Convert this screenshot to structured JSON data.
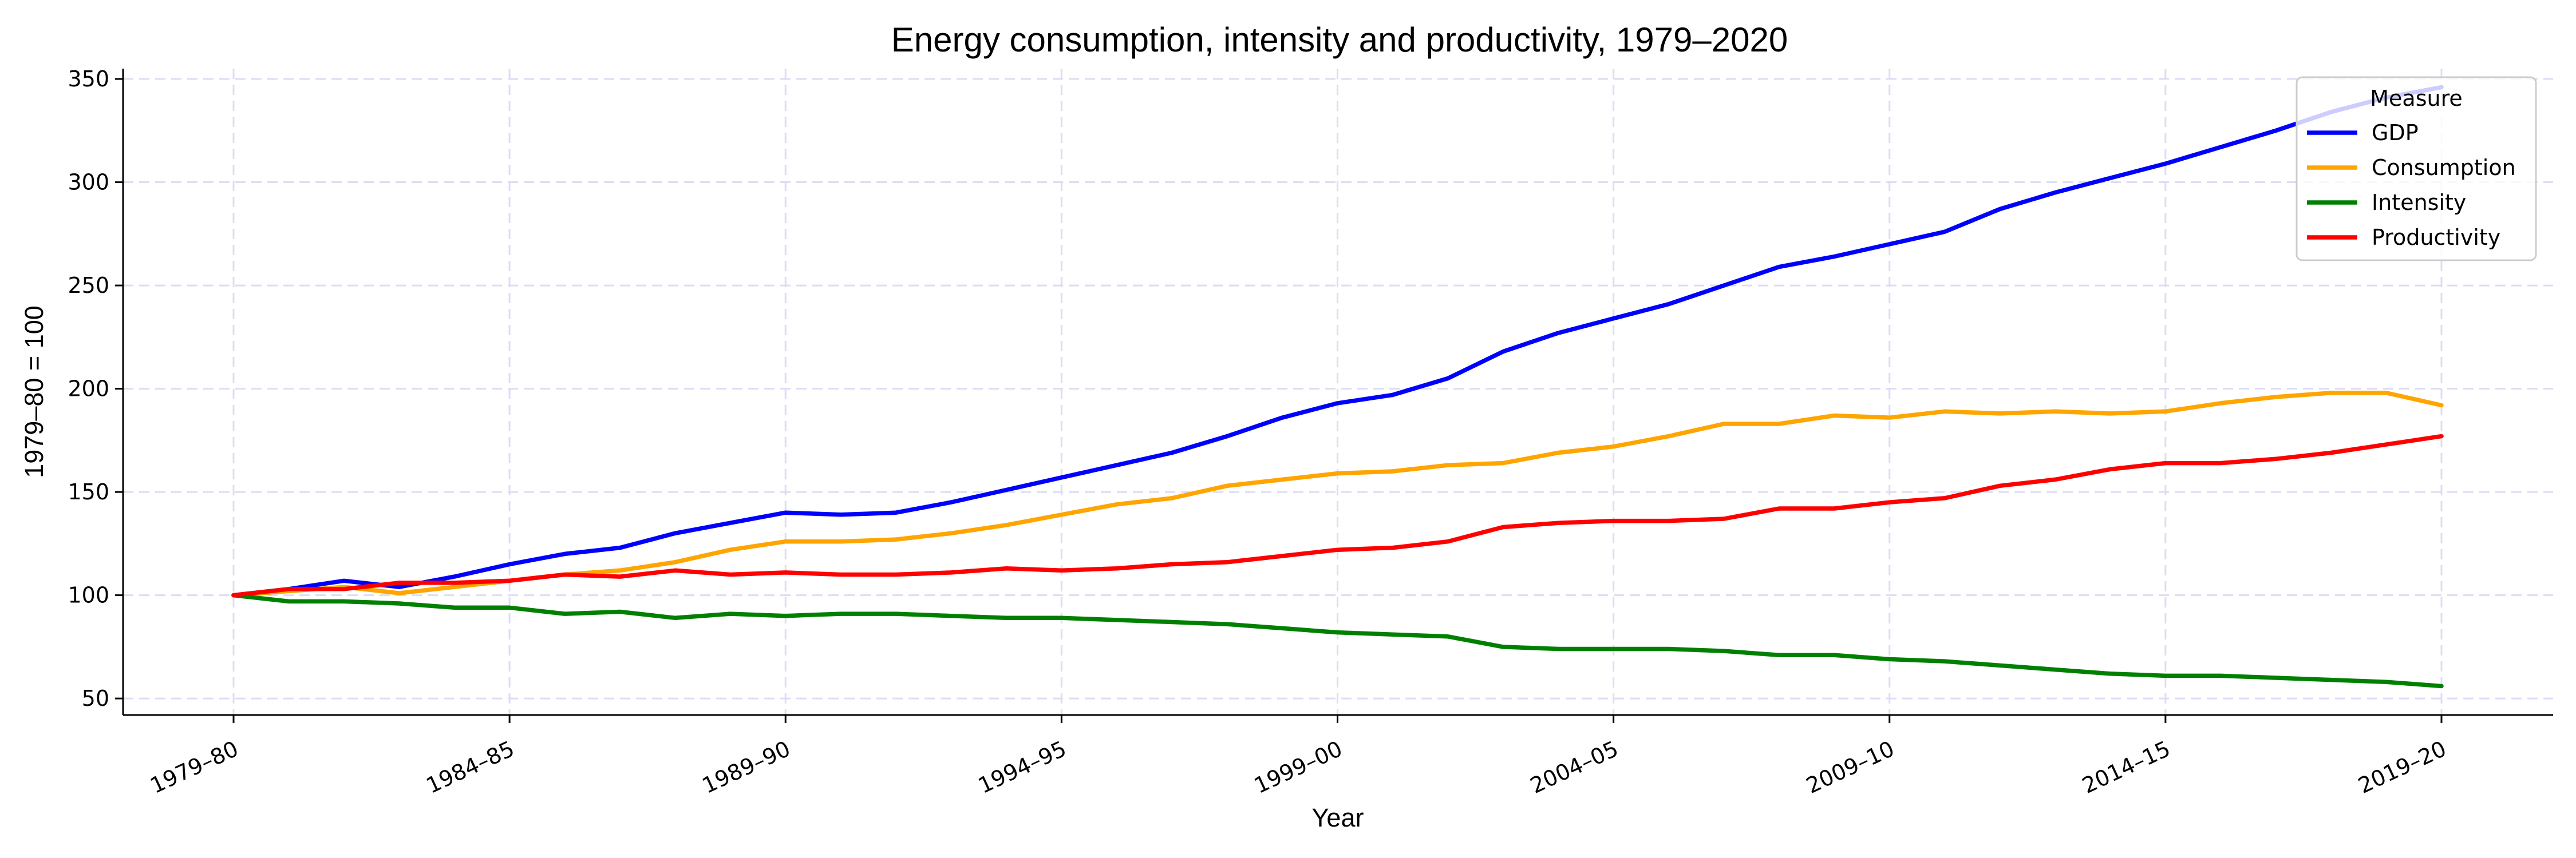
{
  "chart_data": {
    "type": "line",
    "title": "Energy consumption, intensity and productivity, 1979–2020",
    "xlabel": "Year",
    "ylabel": "1979–80 = 100",
    "ylim": [
      42,
      355
    ],
    "yticks": [
      50,
      100,
      150,
      200,
      250,
      300,
      350
    ],
    "x_tick_labels": [
      "1979–80",
      "1984–85",
      "1989–90",
      "1994–95",
      "1999–00",
      "2004–05",
      "2009–10",
      "2014–15",
      "2019–20"
    ],
    "x": [
      "1979–80",
      "1980–81",
      "1981–82",
      "1982–83",
      "1983–84",
      "1984–85",
      "1985–86",
      "1986–87",
      "1987–88",
      "1988–89",
      "1989–90",
      "1990–91",
      "1991–92",
      "1992–93",
      "1993–94",
      "1994–95",
      "1995–96",
      "1996–97",
      "1997–98",
      "1998–99",
      "1999–00",
      "2000–01",
      "2001–02",
      "2002–03",
      "2003–04",
      "2004–05",
      "2005–06",
      "2006–07",
      "2007–08",
      "2008–09",
      "2009–10",
      "2010–11",
      "2011–12",
      "2012–13",
      "2013–14",
      "2014–15",
      "2015–16",
      "2016–17",
      "2017–18",
      "2018–19",
      "2019–20"
    ],
    "grid": true,
    "legend": {
      "title": "Measure",
      "placement": "top-right"
    },
    "series": [
      {
        "name": "GDP",
        "color": "#0000ff",
        "values": [
          100,
          103,
          107,
          104,
          109,
          115,
          120,
          123,
          130,
          135,
          140,
          139,
          140,
          145,
          151,
          157,
          163,
          169,
          177,
          186,
          193,
          197,
          205,
          218,
          227,
          234,
          241,
          250,
          259,
          264,
          270,
          276,
          287,
          295,
          302,
          309,
          317,
          325,
          334,
          341,
          346
        ]
      },
      {
        "name": "Consumption",
        "color": "#ffa500",
        "values": [
          100,
          102,
          104,
          101,
          104,
          107,
          110,
          112,
          116,
          122,
          126,
          126,
          127,
          130,
          134,
          139,
          144,
          147,
          153,
          156,
          159,
          160,
          163,
          164,
          169,
          172,
          177,
          183,
          183,
          187,
          186,
          189,
          188,
          189,
          188,
          189,
          193,
          196,
          198,
          198,
          192
        ]
      },
      {
        "name": "Intensity",
        "color": "#008000",
        "values": [
          100,
          97,
          97,
          96,
          94,
          94,
          91,
          92,
          89,
          91,
          90,
          91,
          91,
          90,
          89,
          89,
          88,
          87,
          86,
          84,
          82,
          81,
          80,
          75,
          74,
          74,
          74,
          73,
          71,
          71,
          69,
          68,
          66,
          64,
          62,
          61,
          61,
          60,
          59,
          58,
          56
        ]
      },
      {
        "name": "Productivity",
        "color": "#ff0000",
        "values": [
          100,
          103,
          103,
          106,
          106,
          107,
          110,
          109,
          112,
          110,
          111,
          110,
          110,
          111,
          113,
          112,
          113,
          115,
          116,
          119,
          122,
          123,
          126,
          133,
          135,
          136,
          136,
          137,
          142,
          142,
          145,
          147,
          153,
          156,
          161,
          164,
          164,
          166,
          169,
          173,
          177
        ]
      }
    ]
  }
}
